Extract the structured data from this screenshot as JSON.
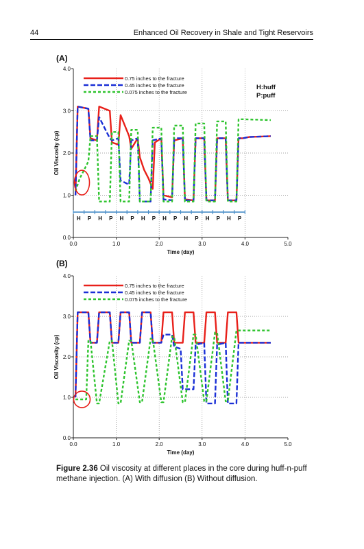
{
  "header": {
    "page_number": "44",
    "running_title": "Enhanced Oil Recovery in Shale and Tight Reservoirs"
  },
  "caption": {
    "label": "Figure 2.36",
    "text": "Oil viscosity at different places in the core during huff-n-puff methane injection. (A) With diffusion (B) Without diffusion."
  },
  "colors": {
    "red": "#e8201a",
    "blue": "#1a2fd6",
    "green": "#2ec42e",
    "grid": "#888888"
  },
  "chart_data": [
    {
      "panel_label": "(A)",
      "type": "line",
      "xlabel": "Time (day)",
      "ylabel": "Oil Viscosity (cp)",
      "xlim": [
        0,
        5
      ],
      "ylim": [
        0,
        4
      ],
      "xticks": [
        "0.0",
        "1.0",
        "2.0",
        "3.0",
        "4.0",
        "5.0"
      ],
      "yticks": [
        "0.0",
        "1.0",
        "2.0",
        "3.0",
        "4.0"
      ],
      "grid": true,
      "legend_position": "top-left",
      "annotation": [
        "H:huff",
        "P:puff"
      ],
      "phase_labels": [
        "H",
        "P",
        "H",
        "P",
        "H",
        "P",
        "H",
        "P",
        "H",
        "P",
        "H",
        "P",
        "H",
        "P",
        "H",
        "P"
      ],
      "series": [
        {
          "name": "0.75 inches to the fracture",
          "color": "red",
          "dash": "solid",
          "x": [
            0.05,
            0.1,
            0.35,
            0.4,
            0.55,
            0.6,
            0.85,
            0.9,
            1.05,
            1.1,
            1.3,
            1.35,
            1.5,
            1.55,
            1.65,
            1.75,
            1.85,
            1.9,
            2.05,
            2.1,
            2.3,
            2.35,
            2.55,
            2.6,
            2.8,
            2.85,
            3.05,
            3.1,
            3.3,
            3.35,
            3.55,
            3.6,
            3.8,
            3.85,
            3.95,
            4.1,
            4.6
          ],
          "y": [
            1.0,
            3.1,
            3.05,
            2.35,
            2.3,
            3.1,
            3.0,
            2.25,
            2.2,
            2.9,
            2.4,
            2.1,
            2.35,
            1.9,
            1.6,
            1.4,
            1.15,
            2.25,
            2.35,
            1.0,
            0.95,
            2.3,
            2.35,
            0.9,
            0.88,
            2.35,
            2.35,
            0.88,
            0.88,
            2.35,
            2.35,
            0.88,
            0.88,
            2.35,
            2.35,
            2.38,
            2.4
          ]
        },
        {
          "name": "0.45 inches to the fracture",
          "color": "blue",
          "dash": "dashed",
          "x": [
            0.05,
            0.1,
            0.35,
            0.4,
            0.55,
            0.6,
            0.85,
            0.9,
            1.05,
            1.1,
            1.3,
            1.35,
            1.5,
            1.55,
            1.8,
            1.85,
            2.05,
            2.1,
            2.3,
            2.35,
            2.55,
            2.6,
            2.8,
            2.85,
            3.05,
            3.1,
            3.3,
            3.35,
            3.55,
            3.6,
            3.8,
            3.85,
            3.95,
            4.1,
            4.6
          ],
          "y": [
            1.0,
            3.1,
            3.05,
            2.3,
            2.3,
            2.85,
            2.35,
            2.3,
            2.35,
            1.35,
            1.25,
            2.3,
            2.35,
            0.85,
            0.85,
            2.3,
            2.35,
            0.9,
            0.88,
            2.35,
            2.35,
            0.88,
            0.88,
            2.35,
            2.35,
            0.88,
            0.88,
            2.35,
            2.35,
            0.88,
            0.88,
            2.35,
            2.35,
            2.38,
            2.4
          ]
        },
        {
          "name": "0.075 inches to the fracture",
          "color": "green",
          "dash": "dotted",
          "x": [
            0.05,
            0.15,
            0.25,
            0.35,
            0.4,
            0.55,
            0.6,
            0.85,
            0.9,
            1.05,
            1.1,
            1.3,
            1.35,
            1.5,
            1.55,
            1.8,
            1.85,
            2.05,
            2.1,
            2.3,
            2.35,
            2.55,
            2.6,
            2.8,
            2.85,
            3.05,
            3.1,
            3.3,
            3.35,
            3.55,
            3.6,
            3.8,
            3.85,
            3.95,
            4.6
          ],
          "y": [
            1.1,
            1.4,
            1.6,
            1.8,
            2.4,
            2.4,
            0.85,
            0.85,
            2.5,
            2.5,
            0.85,
            0.85,
            2.55,
            2.55,
            0.85,
            0.85,
            2.6,
            2.6,
            0.85,
            0.85,
            2.65,
            2.65,
            0.85,
            0.85,
            2.7,
            2.7,
            0.85,
            0.85,
            2.75,
            2.75,
            0.85,
            0.85,
            2.8,
            2.8,
            2.78
          ]
        }
      ]
    },
    {
      "panel_label": "(B)",
      "type": "line",
      "xlabel": "Time (day)",
      "ylabel": "Oil Viscosity (cp)",
      "xlim": [
        0,
        5
      ],
      "ylim": [
        0,
        4
      ],
      "xticks": [
        "0.0",
        "1.0",
        "2.0",
        "3.0",
        "4.0",
        "5.0"
      ],
      "yticks": [
        "0.0",
        "1.0",
        "2.0",
        "3.0",
        "4.0"
      ],
      "grid": true,
      "legend_position": "top-left",
      "series": [
        {
          "name": "0.75 inches to the fracture",
          "color": "red",
          "dash": "solid",
          "x": [
            0.05,
            0.1,
            0.35,
            0.4,
            0.55,
            0.6,
            0.85,
            0.9,
            1.05,
            1.1,
            1.3,
            1.35,
            1.55,
            1.6,
            1.8,
            1.85,
            2.05,
            2.1,
            2.3,
            2.35,
            2.55,
            2.6,
            2.8,
            2.85,
            3.05,
            3.1,
            3.3,
            3.35,
            3.55,
            3.6,
            3.8,
            3.85,
            4.6
          ],
          "y": [
            1.0,
            3.1,
            3.1,
            2.35,
            2.35,
            3.1,
            3.1,
            2.35,
            2.35,
            3.1,
            3.1,
            2.35,
            2.35,
            3.1,
            3.1,
            2.35,
            2.35,
            3.1,
            3.1,
            2.35,
            2.35,
            3.1,
            3.1,
            2.35,
            2.35,
            3.1,
            3.1,
            2.35,
            2.35,
            3.1,
            3.1,
            2.35,
            2.35
          ]
        },
        {
          "name": "0.45 inches to the fracture",
          "color": "blue",
          "dash": "dashed",
          "x": [
            0.05,
            0.1,
            0.35,
            0.4,
            0.55,
            0.6,
            0.85,
            0.9,
            1.05,
            1.1,
            1.3,
            1.35,
            1.55,
            1.6,
            1.8,
            1.85,
            2.05,
            2.1,
            2.3,
            2.35,
            2.5,
            2.55,
            2.8,
            2.85,
            3.05,
            3.1,
            3.3,
            3.35,
            3.55,
            3.6,
            3.8,
            3.85,
            4.6
          ],
          "y": [
            1.0,
            3.1,
            3.1,
            2.35,
            2.35,
            3.1,
            3.1,
            2.35,
            2.35,
            3.1,
            3.1,
            2.35,
            2.35,
            3.1,
            3.1,
            2.35,
            2.35,
            2.55,
            2.55,
            2.25,
            2.2,
            1.2,
            1.2,
            2.3,
            2.35,
            0.85,
            0.85,
            2.3,
            2.35,
            0.85,
            0.85,
            2.35,
            2.35
          ]
        },
        {
          "name": "0.075 inches to the fracture",
          "color": "green",
          "dash": "dotted",
          "x": [
            0.05,
            0.3,
            0.35,
            0.4,
            0.55,
            0.6,
            0.85,
            0.9,
            1.05,
            1.1,
            1.3,
            1.35,
            1.55,
            1.6,
            1.8,
            1.85,
            2.05,
            2.1,
            2.3,
            2.35,
            2.55,
            2.6,
            2.8,
            2.85,
            3.05,
            3.1,
            3.3,
            3.35,
            3.55,
            3.6,
            3.8,
            3.85,
            4.0,
            4.6
          ],
          "y": [
            0.95,
            0.95,
            2.4,
            2.4,
            0.85,
            0.85,
            2.4,
            2.4,
            0.85,
            0.85,
            2.4,
            2.4,
            0.88,
            0.88,
            2.45,
            2.45,
            0.88,
            0.88,
            2.5,
            2.5,
            0.88,
            0.88,
            2.55,
            2.55,
            0.9,
            0.9,
            2.6,
            2.6,
            0.9,
            0.9,
            2.65,
            2.65,
            2.65,
            2.65
          ]
        }
      ]
    }
  ]
}
